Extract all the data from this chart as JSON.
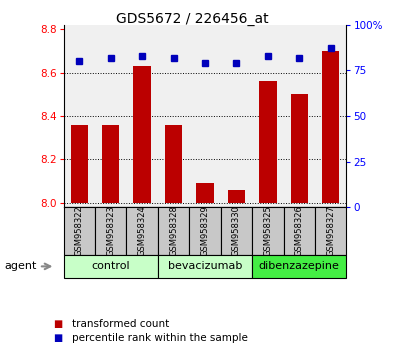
{
  "title": "GDS5672 / 226456_at",
  "samples": [
    "GSM958322",
    "GSM958323",
    "GSM958324",
    "GSM958328",
    "GSM958329",
    "GSM958330",
    "GSM958325",
    "GSM958326",
    "GSM958327"
  ],
  "bar_values": [
    8.36,
    8.36,
    8.63,
    8.36,
    8.09,
    8.06,
    8.56,
    8.5,
    8.7
  ],
  "percentile_values": [
    80,
    82,
    83,
    82,
    79,
    79,
    83,
    82,
    87
  ],
  "groups": [
    {
      "label": "control",
      "indices": [
        0,
        1,
        2
      ],
      "color": "#c8ffc8"
    },
    {
      "label": "bevacizumab",
      "indices": [
        3,
        4,
        5
      ],
      "color": "#c8ffc8"
    },
    {
      "label": "dibenzazepine",
      "indices": [
        6,
        7,
        8
      ],
      "color": "#44ee44"
    }
  ],
  "bar_color": "#bb0000",
  "dot_color": "#0000bb",
  "ylim_left": [
    7.98,
    8.82
  ],
  "ylim_right": [
    0,
    100
  ],
  "yticks_left": [
    8.0,
    8.2,
    8.4,
    8.6,
    8.8
  ],
  "yticks_right": [
    0,
    25,
    50,
    75,
    100
  ],
  "ytick_labels_right": [
    "0",
    "25",
    "50",
    "75",
    "100%"
  ],
  "grid_values": [
    8.0,
    8.2,
    8.4,
    8.6
  ],
  "bar_width": 0.55,
  "background_color": "#ffffff",
  "plot_bg_color": "#f0f0f0",
  "sample_box_color": "#c8c8c8",
  "agent_label": "agent",
  "legend_bar_label": "transformed count",
  "legend_dot_label": "percentile rank within the sample"
}
